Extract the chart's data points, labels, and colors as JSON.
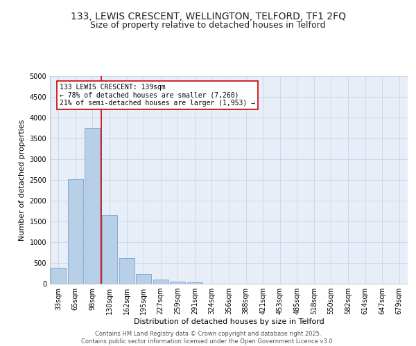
{
  "title_line1": "133, LEWIS CRESCENT, WELLINGTON, TELFORD, TF1 2FQ",
  "title_line2": "Size of property relative to detached houses in Telford",
  "xlabel": "Distribution of detached houses by size in Telford",
  "ylabel": "Number of detached properties",
  "categories": [
    "33sqm",
    "65sqm",
    "98sqm",
    "130sqm",
    "162sqm",
    "195sqm",
    "227sqm",
    "259sqm",
    "291sqm",
    "324sqm",
    "356sqm",
    "388sqm",
    "421sqm",
    "453sqm",
    "485sqm",
    "518sqm",
    "550sqm",
    "582sqm",
    "614sqm",
    "647sqm",
    "679sqm"
  ],
  "values": [
    380,
    2520,
    3750,
    1650,
    615,
    235,
    105,
    55,
    30,
    5,
    0,
    0,
    0,
    0,
    0,
    0,
    0,
    0,
    0,
    0,
    0
  ],
  "bar_color": "#b8cfe8",
  "bar_edge_color": "#6699cc",
  "vline_color": "#cc0000",
  "annotation_box_color": "#cc0000",
  "annotation_box_bg": "#ffffff",
  "annotation_line1": "133 LEWIS CRESCENT: 139sqm",
  "annotation_line2": "← 78% of detached houses are smaller (7,260)",
  "annotation_line3": "21% of semi-detached houses are larger (1,953) →",
  "ylim": [
    0,
    5000
  ],
  "yticks": [
    0,
    500,
    1000,
    1500,
    2000,
    2500,
    3000,
    3500,
    4000,
    4500,
    5000
  ],
  "grid_color": "#c8d4e8",
  "bg_color": "#e8eef8",
  "footer_line1": "Contains HM Land Registry data © Crown copyright and database right 2025.",
  "footer_line2": "Contains public sector information licensed under the Open Government Licence v3.0.",
  "title_fontsize": 10,
  "subtitle_fontsize": 9,
  "axis_label_fontsize": 8,
  "tick_fontsize": 7,
  "annotation_fontsize": 7,
  "footer_fontsize": 6
}
